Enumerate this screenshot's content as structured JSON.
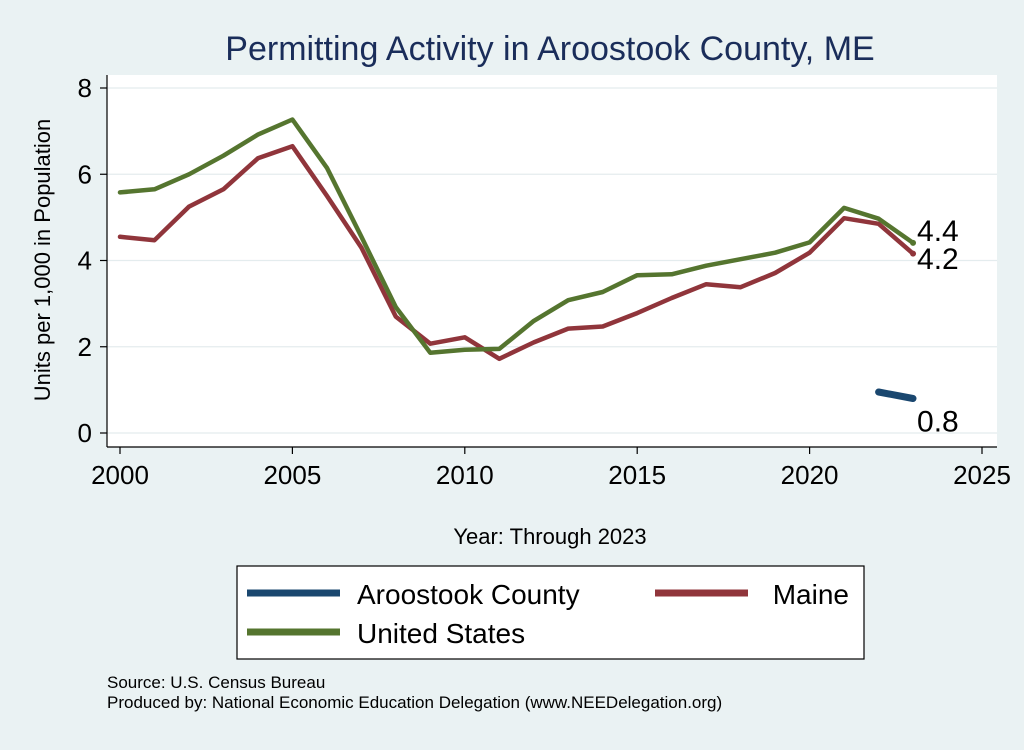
{
  "chart_data": {
    "type": "line",
    "title": "Permitting Activity in Aroostook County, ME",
    "xlabel": "Year: Through 2023",
    "ylabel": "Units per 1,000 in Population",
    "xlim": [
      2000,
      2025
    ],
    "ylim": [
      0,
      8
    ],
    "x_ticks": [
      2000,
      2005,
      2010,
      2015,
      2020,
      2025
    ],
    "y_ticks": [
      0,
      2,
      4,
      6,
      8
    ],
    "grid": "horizontal",
    "legend_position": "bottom",
    "series": [
      {
        "name": "Aroostook County",
        "color": "#1a476f",
        "x": [
          2022,
          2023
        ],
        "y": [
          0.95,
          0.8
        ],
        "end_label": "0.8"
      },
      {
        "name": "Maine",
        "color": "#90353b",
        "x": [
          2000,
          2001,
          2002,
          2003,
          2004,
          2005,
          2006,
          2007,
          2008,
          2009,
          2010,
          2011,
          2012,
          2013,
          2014,
          2015,
          2016,
          2017,
          2018,
          2019,
          2020,
          2021,
          2022,
          2023
        ],
        "y": [
          4.55,
          4.47,
          5.25,
          5.65,
          6.37,
          6.65,
          5.5,
          4.3,
          2.7,
          2.07,
          2.22,
          1.72,
          2.1,
          2.42,
          2.47,
          2.78,
          3.13,
          3.45,
          3.38,
          3.71,
          4.18,
          4.98,
          4.85,
          4.16
        ],
        "end_label": "4.2"
      },
      {
        "name": "United States",
        "color": "#55752f",
        "x": [
          2000,
          2001,
          2002,
          2003,
          2004,
          2005,
          2006,
          2007,
          2008,
          2009,
          2010,
          2011,
          2012,
          2013,
          2014,
          2015,
          2016,
          2017,
          2018,
          2019,
          2020,
          2021,
          2022,
          2023
        ],
        "y": [
          5.58,
          5.65,
          6.0,
          6.43,
          6.92,
          7.27,
          6.15,
          4.55,
          2.92,
          1.86,
          1.93,
          1.95,
          2.6,
          3.08,
          3.27,
          3.66,
          3.68,
          3.88,
          4.03,
          4.18,
          4.42,
          5.22,
          4.97,
          4.41
        ],
        "end_label": "4.4"
      }
    ]
  },
  "source_lines": [
    "Source: U.S. Census Bureau",
    "Produced by: National Economic Education Delegation (www.NEEDelegation.org)"
  ]
}
